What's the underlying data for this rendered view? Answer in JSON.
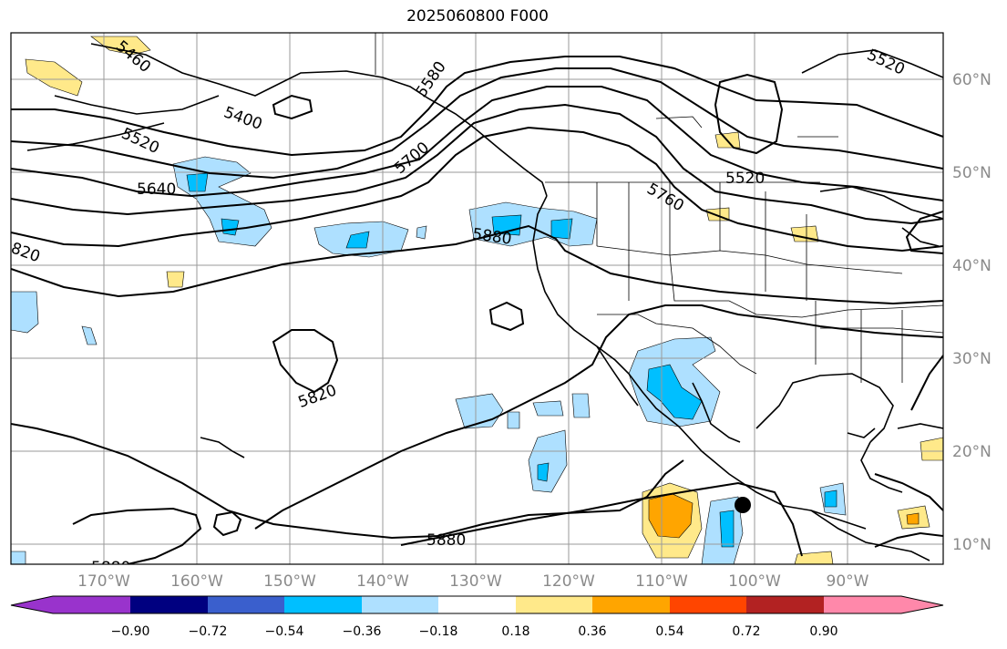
{
  "title": "2025060800 F000",
  "lat_labels": [
    "60°N",
    "50°N",
    "40°N",
    "30°N",
    "20°N",
    "10°N"
  ],
  "lon_labels": [
    "170°W",
    "160°W",
    "150°W",
    "140°W",
    "130°W",
    "120°W",
    "110°W",
    "100°W",
    "90°W"
  ],
  "contour_labels": [
    "5460",
    "5400",
    "5520",
    "5580",
    "5700",
    "5640",
    "820",
    "5880",
    "5820",
    "5760",
    "5520",
    "5520",
    "5880",
    "5880"
  ],
  "colorbar": {
    "ticks": [
      "−0.90",
      "−0.72",
      "−0.54",
      "−0.36",
      "−0.18",
      "0.18",
      "0.36",
      "0.54",
      "0.72",
      "0.90"
    ],
    "colors": [
      "#9933cc",
      "#000080",
      "#3a5fcd",
      "#00bfff",
      "#aee0ff",
      "#ffffff",
      "#ffe98a",
      "#ffa500",
      "#ff4500",
      "#b22222",
      "#ff88aa"
    ]
  },
  "colors": {
    "neg_light": "#aee0ff",
    "neg_mid": "#00bfff",
    "pos_light": "#ffe98a",
    "pos_mid": "#ffa500"
  },
  "markers": [
    {
      "name": "storm-center",
      "lat": 14.5,
      "lon": -101.5
    }
  ]
}
